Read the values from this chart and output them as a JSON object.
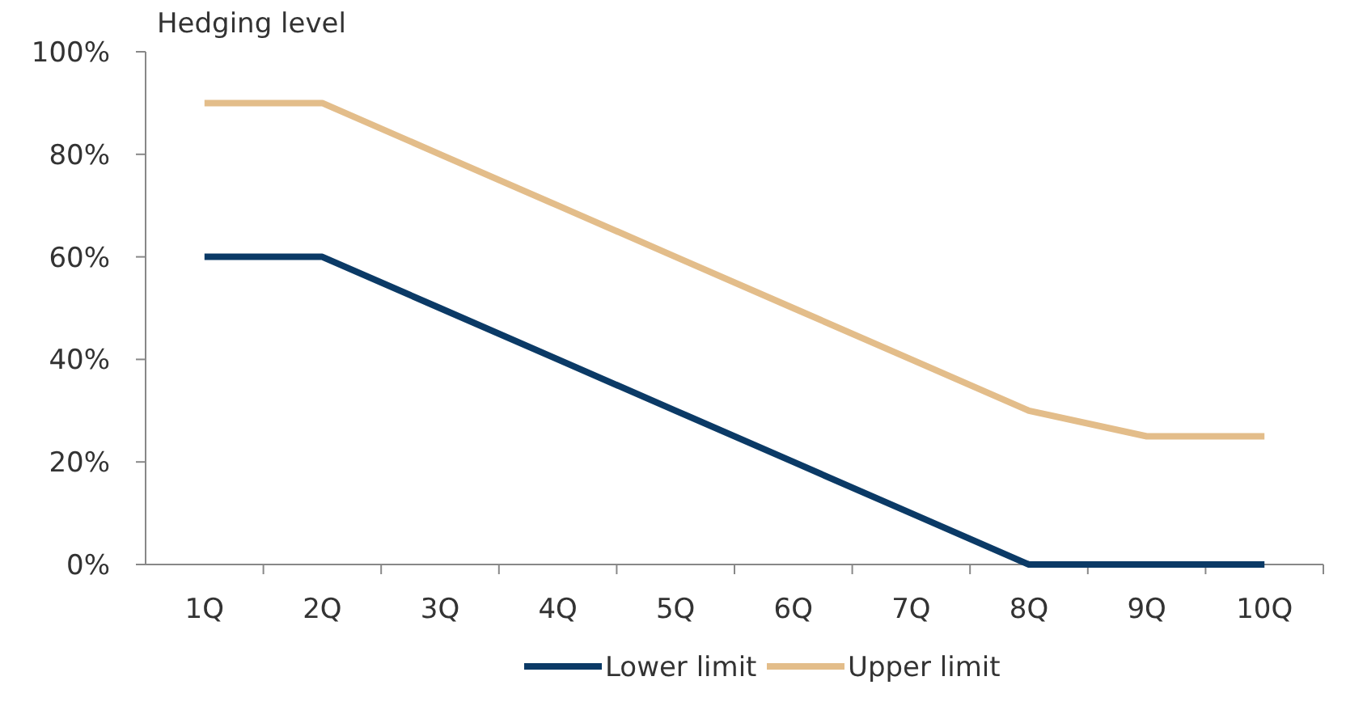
{
  "chart_data": {
    "type": "line",
    "ylabel": "Hedging level",
    "categories": [
      "1Q",
      "2Q",
      "3Q",
      "4Q",
      "5Q",
      "6Q",
      "7Q",
      "8Q",
      "9Q",
      "10Q"
    ],
    "series": [
      {
        "name": "Lower limit",
        "color": "#0b3a66",
        "values": [
          60,
          60,
          50,
          40,
          30,
          20,
          10,
          0,
          0,
          0
        ]
      },
      {
        "name": "Upper limit",
        "color": "#e3bd8a",
        "values": [
          90,
          90,
          80,
          70,
          60,
          50,
          40,
          30,
          25,
          25
        ]
      }
    ],
    "ylim": [
      0,
      100
    ],
    "yticks": [
      {
        "value": 0,
        "label": "0%"
      },
      {
        "value": 20,
        "label": "20%"
      },
      {
        "value": 40,
        "label": "40%"
      },
      {
        "value": 60,
        "label": "60%"
      },
      {
        "value": 80,
        "label": "80%"
      },
      {
        "value": 100,
        "label": "100%"
      }
    ],
    "grid": false,
    "legend": "bottom",
    "marker": "none",
    "line_style": "solid"
  }
}
